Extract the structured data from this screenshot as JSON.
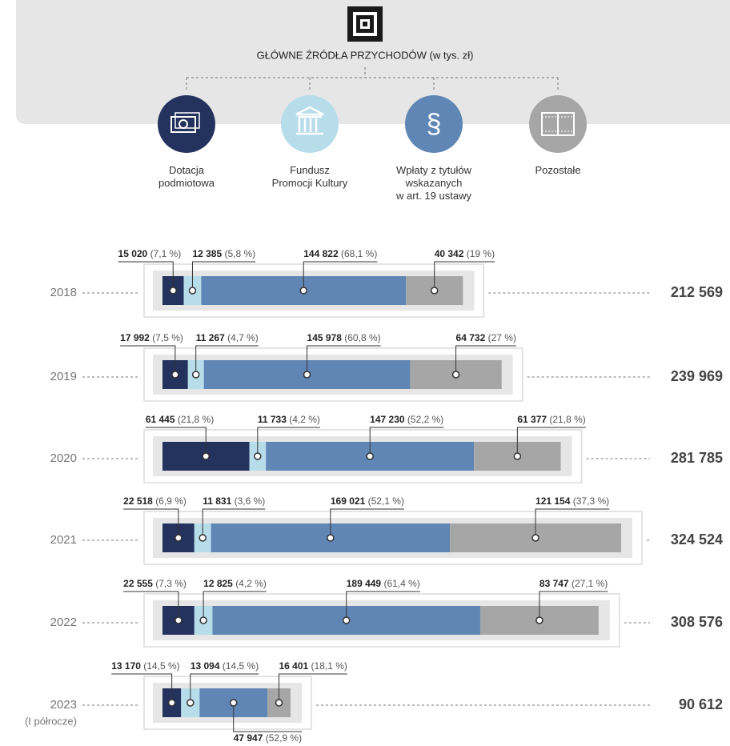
{
  "chart_data": {
    "type": "bar",
    "title": "GŁÓWNE ŹRÓDŁA PRZYCHODÓW (w tys. zł)",
    "categories": [
      "2018",
      "2019",
      "2020",
      "2021",
      "2022",
      "2023"
    ],
    "period_note": "(I półrocze)",
    "series": [
      {
        "name": "Dotacja\npodmiotowa",
        "color": "#24335e",
        "values": [
          15020,
          17992,
          61445,
          22518,
          22555,
          13170
        ],
        "value_labels": [
          "15 020",
          "17 992",
          "61 445",
          "22 518",
          "22 555",
          "13 170"
        ],
        "percent_labels": [
          "(7,1 %)",
          "(7,5 %)",
          "(21,8 %)",
          "(6,9 %)",
          "(7,3 %)",
          "(14,5 %)"
        ]
      },
      {
        "name": "Fundusz\nPromocji Kultury",
        "color": "#b7dcea",
        "values": [
          12385,
          11267,
          11733,
          11831,
          12825,
          13094
        ],
        "value_labels": [
          "12 385",
          "11 267",
          "11 733",
          "11 831",
          "12 825",
          "13 094"
        ],
        "percent_labels": [
          "(5,8 %)",
          "(4,7 %)",
          "(4,2 %)",
          "(3,6 %)",
          "(4,2 %)",
          "(14,5 %)"
        ]
      },
      {
        "name": "Wpłaty z tytułów\nwskazanych\nw art. 19 ustawy",
        "color": "#5f86b5",
        "values": [
          144822,
          145978,
          147230,
          169021,
          189449,
          47947
        ],
        "value_labels": [
          "144 822",
          "145 978",
          "147 230",
          "169 021",
          "189 449",
          "47 947"
        ],
        "percent_labels": [
          "(68,1 %)",
          "(60,8 %)",
          "(52,2 %)",
          "(52,1 %)",
          "(61,4 %)",
          "(52,9 %)"
        ]
      },
      {
        "name": "Pozostałe",
        "color": "#a6a6a6",
        "values": [
          40342,
          64732,
          61377,
          121154,
          83747,
          16401
        ],
        "value_labels": [
          "40 342",
          "64 732",
          "61 377",
          "121 154",
          "83 747",
          "16 401"
        ],
        "percent_labels": [
          "(19 %)",
          "(27 %)",
          "(21,8 %)",
          "(37,3 %)",
          "(27,1 %)",
          "(18,1 %)"
        ]
      }
    ],
    "totals": [
      212569,
      239969,
      281785,
      324524,
      308576,
      90612
    ],
    "total_labels": [
      "212 569",
      "239 969",
      "281 785",
      "324 524",
      "308 576",
      "90 612"
    ]
  }
}
